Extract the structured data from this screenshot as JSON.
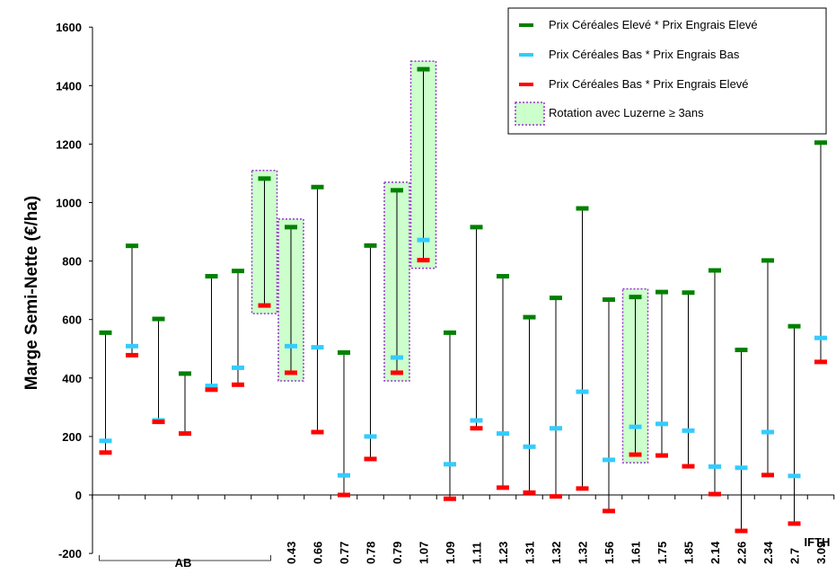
{
  "chart_data": {
    "type": "range",
    "ylabel": "Marge Semi-Nette (€/ha)",
    "xlabel": "IFTH",
    "ylim": [
      -200,
      1600
    ],
    "yticks": [
      -200,
      0,
      200,
      400,
      600,
      800,
      1000,
      1200,
      1400,
      1600
    ],
    "group_label": "AB",
    "categories": [
      "",
      "",
      "",
      "",
      "",
      "",
      "",
      "0.43",
      "0.66",
      "0.77",
      "0.78",
      "0.79",
      "1.07",
      "1.09",
      "1.11",
      "1.23",
      "1.31",
      "1.32",
      "1.32",
      "1.56",
      "1.61",
      "1.75",
      "1.85",
      "2.14",
      "2.26",
      "2.34",
      "2.7",
      "3.09"
    ],
    "series": [
      {
        "name": "Prix Céréales Elevé * Prix Engrais Elevé",
        "color": "#008000",
        "values": [
          555,
          852,
          602,
          415,
          748,
          766,
          1082,
          916,
          1053,
          487,
          853,
          1042,
          1456,
          555,
          916,
          748,
          608,
          674,
          980,
          668,
          677,
          694,
          692,
          768,
          496,
          802,
          577,
          1205
        ]
      },
      {
        "name": "Prix Céréales Bas * Prix Engrais Bas",
        "color": "#33CCFF",
        "values": [
          185,
          509,
          255,
          210,
          373,
          435,
          648,
          509,
          505,
          67,
          200,
          470,
          872,
          105,
          255,
          210,
          165,
          228,
          353,
          120,
          233,
          243,
          220,
          97,
          93,
          215,
          65,
          537
        ]
      },
      {
        "name": "Prix Céréales Bas * Prix Engrais Elevé",
        "color": "#FF0000",
        "values": [
          145,
          478,
          250,
          210,
          360,
          377,
          648,
          418,
          215,
          0,
          123,
          418,
          803,
          -13,
          228,
          25,
          8,
          -5,
          22,
          -55,
          138,
          135,
          98,
          3,
          -123,
          68,
          -98,
          455
        ]
      }
    ],
    "highlight": {
      "label": "Rotation avec Luzerne ≥ 3ans",
      "color": "#CCFFCC",
      "border": "#9933CC",
      "indices": [
        6,
        7,
        11,
        12,
        20
      ]
    },
    "legend_position": "top-right",
    "grid": false
  }
}
